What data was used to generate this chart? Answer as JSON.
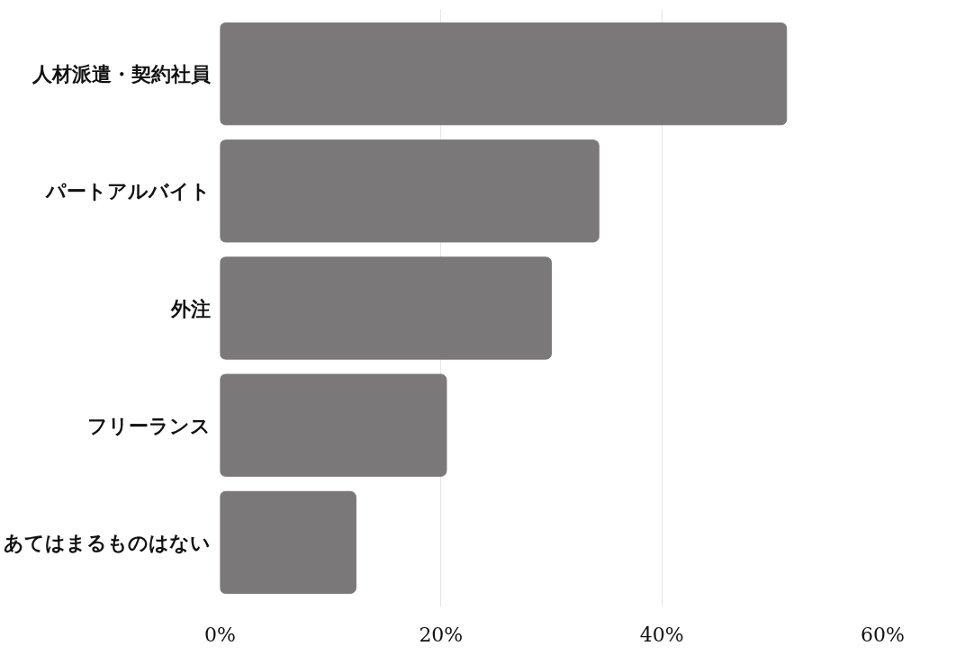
{
  "chart_data": {
    "type": "bar",
    "orientation": "horizontal",
    "categories": [
      "人材派遣・契約社員",
      "パートアルバイト",
      "外注",
      "フリーランス",
      "あてはまるものはない"
    ],
    "values": [
      51.3,
      34.3,
      30.0,
      20.5,
      12.3
    ],
    "color": "#7a7878",
    "xlim": [
      0,
      60
    ],
    "xticks": [
      {
        "value": 0,
        "label": "0%"
      },
      {
        "value": 20,
        "label": "20%"
      },
      {
        "value": 40,
        "label": "40%"
      },
      {
        "value": 60,
        "label": "60%"
      }
    ],
    "grid": "x"
  }
}
